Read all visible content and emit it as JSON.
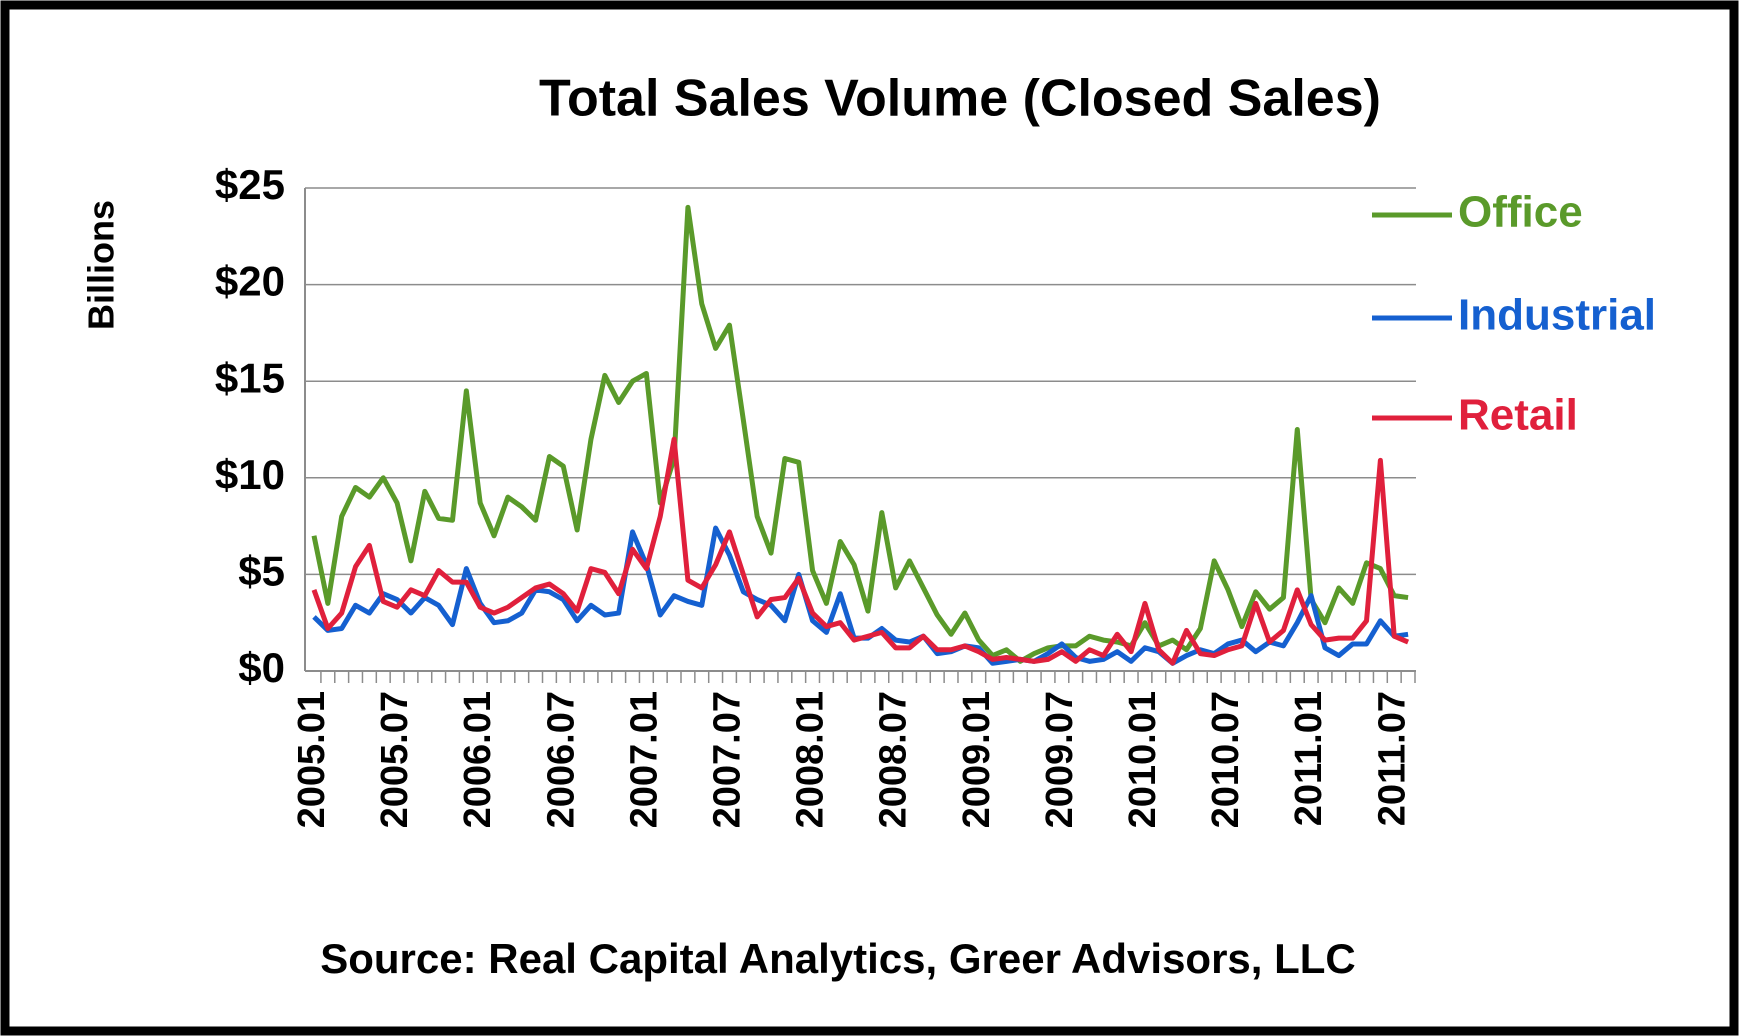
{
  "chart_data": {
    "type": "line",
    "title": "Total Sales Volume (Closed Sales)",
    "y_label": "Billions",
    "source": "Source: Real Capital  Analytics, Greer Advisors, LLC",
    "categories": [
      "2005.01",
      null,
      null,
      null,
      null,
      null,
      "2005.07",
      null,
      null,
      null,
      null,
      null,
      "2006.01",
      null,
      null,
      null,
      null,
      null,
      "2006.07",
      null,
      null,
      null,
      null,
      null,
      "2007.01",
      null,
      null,
      null,
      null,
      null,
      "2007.07",
      null,
      null,
      null,
      null,
      null,
      "2008.01",
      null,
      null,
      null,
      null,
      null,
      "2008.07",
      null,
      null,
      null,
      null,
      null,
      "2009.01",
      null,
      null,
      null,
      null,
      null,
      "2009.07",
      null,
      null,
      null,
      null,
      null,
      "2010.01",
      null,
      null,
      null,
      null,
      null,
      "2010.07",
      null,
      null,
      null,
      null,
      null,
      "2011.01",
      null,
      null,
      null,
      null,
      null,
      "2011.07",
      null
    ],
    "series": [
      {
        "name": "Office",
        "color": "#5a9a2a",
        "values": [
          7.0,
          3.5,
          8.0,
          9.5,
          9.0,
          10.0,
          8.7,
          5.7,
          9.3,
          7.9,
          7.8,
          14.5,
          8.7,
          7.0,
          9.0,
          8.5,
          7.8,
          11.1,
          10.6,
          7.3,
          12.0,
          15.3,
          13.9,
          15.0,
          15.4,
          8.7,
          11.0,
          24.0,
          19.0,
          16.7,
          17.9,
          13.0,
          8.0,
          6.1,
          11.0,
          10.8,
          5.2,
          3.5,
          6.7,
          5.5,
          3.1,
          8.2,
          4.3,
          5.7,
          4.3,
          2.9,
          1.9,
          3.0,
          1.6,
          0.8,
          1.1,
          0.5,
          0.9,
          1.2,
          1.3,
          1.3,
          1.8,
          1.6,
          1.5,
          1.3,
          2.5,
          1.3,
          1.6,
          1.1,
          2.2,
          5.7,
          4.2,
          2.3,
          4.1,
          3.2,
          3.8,
          12.5,
          3.7,
          2.5,
          4.3,
          3.5,
          5.6,
          5.3,
          3.9,
          3.8
        ]
      },
      {
        "name": "Industrial",
        "color": "#1560d0",
        "values": [
          2.8,
          2.1,
          2.2,
          3.4,
          3.0,
          4.0,
          3.7,
          3.0,
          3.8,
          3.4,
          2.4,
          5.3,
          3.5,
          2.5,
          2.6,
          3.0,
          4.2,
          4.1,
          3.7,
          2.6,
          3.4,
          2.9,
          3.0,
          7.2,
          5.5,
          2.9,
          3.9,
          3.6,
          3.4,
          7.4,
          6.0,
          4.1,
          3.7,
          3.4,
          2.6,
          5.0,
          2.6,
          2.0,
          4.0,
          1.7,
          1.7,
          2.2,
          1.6,
          1.5,
          1.8,
          0.9,
          1.0,
          1.3,
          1.2,
          0.4,
          0.5,
          0.6,
          0.5,
          0.9,
          1.4,
          0.7,
          0.5,
          0.6,
          1.0,
          0.5,
          1.2,
          1.0,
          0.4,
          0.8,
          1.1,
          0.9,
          1.4,
          1.6,
          1.0,
          1.5,
          1.3,
          2.5,
          3.9,
          1.2,
          0.8,
          1.4,
          1.4,
          2.6,
          1.8,
          1.9
        ]
      },
      {
        "name": "Retail",
        "color": "#e0203c",
        "values": [
          4.2,
          2.2,
          3.0,
          5.4,
          6.5,
          3.6,
          3.3,
          4.2,
          3.9,
          5.2,
          4.6,
          4.6,
          3.3,
          3.0,
          3.3,
          3.8,
          4.3,
          4.5,
          4.0,
          3.1,
          5.3,
          5.1,
          4.0,
          6.3,
          5.3,
          8.0,
          12.0,
          4.7,
          4.3,
          5.5,
          7.2,
          5.0,
          2.8,
          3.7,
          3.8,
          4.8,
          3.0,
          2.3,
          2.5,
          1.6,
          1.8,
          2.0,
          1.2,
          1.2,
          1.8,
          1.1,
          1.1,
          1.3,
          1.0,
          0.6,
          0.7,
          0.6,
          0.5,
          0.6,
          1.0,
          0.5,
          1.1,
          0.8,
          1.9,
          1.0,
          3.5,
          1.1,
          0.4,
          2.1,
          0.9,
          0.8,
          1.1,
          1.3,
          3.5,
          1.5,
          2.1,
          4.2,
          2.4,
          1.6,
          1.7,
          1.7,
          2.6,
          10.9,
          1.8,
          1.5
        ]
      }
    ],
    "ylim": [
      0,
      25
    ],
    "yticks": [
      {
        "value": 0,
        "label": "$0"
      },
      {
        "value": 5,
        "label": "$5"
      },
      {
        "value": 10,
        "label": "$10"
      },
      {
        "value": 15,
        "label": "$15"
      },
      {
        "value": 20,
        "label": "$20"
      },
      {
        "value": 25,
        "label": "$25"
      }
    ],
    "grid": true
  }
}
